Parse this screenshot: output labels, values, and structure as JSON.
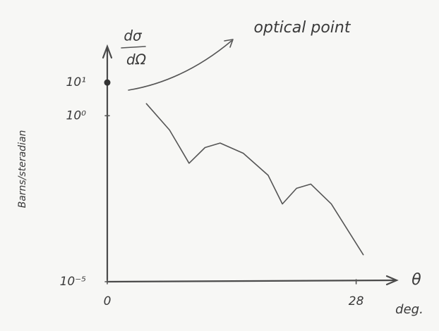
{
  "chart_data": {
    "type": "line",
    "y_quantity": {
      "numerator": "dσ",
      "denominator": "dΩ"
    },
    "y_label": "Barns/steradian",
    "x_label": "θ",
    "x_unit": "deg.",
    "log_y": true,
    "xlim": [
      0,
      32
    ],
    "xticks": [
      0,
      28
    ],
    "ylim": [
      1e-05,
      100
    ],
    "yticks": [
      {
        "value": 10,
        "label": "10¹"
      },
      {
        "value": 1,
        "label": "10⁰"
      },
      {
        "value": 1e-05,
        "label": "10⁻⁵"
      }
    ],
    "color": "#555555",
    "x": [
      4.4,
      7.0,
      9.2,
      11.0,
      12.7,
      15.3,
      18.1,
      19.7,
      21.3,
      22.9,
      25.2,
      28.8
    ],
    "values": [
      2.3,
      0.37,
      0.037,
      0.11,
      0.15,
      0.074,
      0.016,
      0.0022,
      0.0065,
      0.0087,
      0.0022,
      6.5e-05
    ],
    "optical_point": {
      "label": "optical point",
      "x": 0,
      "value": 10
    }
  }
}
